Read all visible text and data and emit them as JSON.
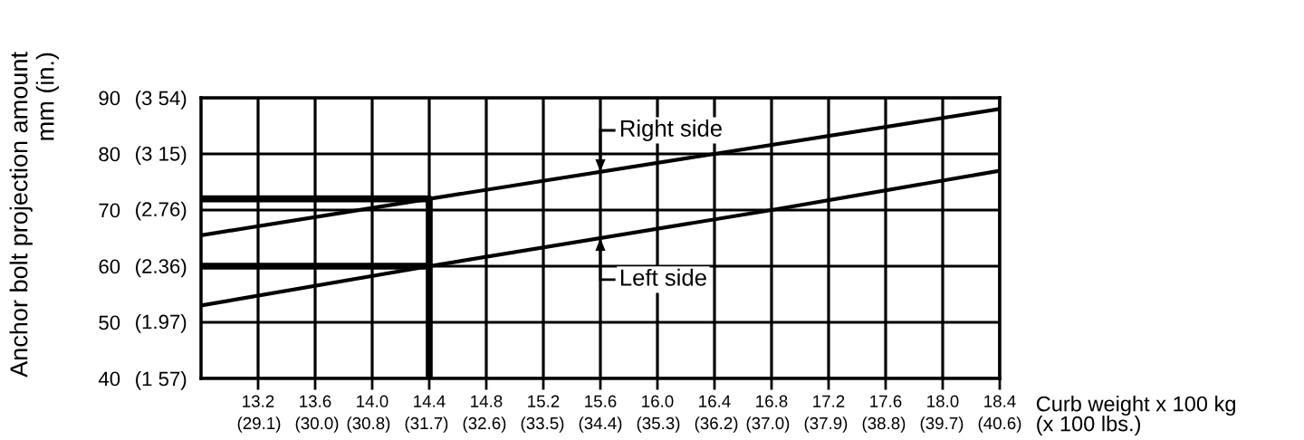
{
  "chart_data": {
    "type": "line",
    "xlabel": "Curb weight x 100 kg",
    "x2label": "(x 100 lbs.)",
    "ylabel": "Anchor bolt projection amount\nmm (in.)",
    "xlim": [
      12.8,
      18.4
    ],
    "ylim": [
      40,
      90
    ],
    "xticks": [
      13.2,
      13.6,
      {
        "value": 14,
        "label": "14.0"
      },
      14.4,
      14.8,
      15.2,
      15.6,
      {
        "value": 16,
        "label": "16.0"
      },
      16.4,
      16.8,
      17.2,
      17.6,
      {
        "value": 18,
        "label": "18.0"
      },
      18.4
    ],
    "x2lim": [
      28.2,
      40.6
    ],
    "x2ticks": [
      {
        "value": 29.1,
        "label": "(29.1)"
      },
      {
        "value": 30.0,
        "label": "(30.0)"
      },
      {
        "value": 30.8,
        "label": "(30.8)"
      },
      {
        "value": 31.7,
        "label": "(31.7)"
      },
      {
        "value": 32.6,
        "label": "(32.6)"
      },
      {
        "value": 33.5,
        "label": "(33.5)"
      },
      {
        "value": 34.4,
        "label": "(34.4)"
      },
      {
        "value": 35.3,
        "label": "(35.3)"
      },
      {
        "value": 36.2,
        "label": "(36.2)"
      },
      {
        "value": 37.0,
        "label": "(37.0)"
      },
      {
        "value": 37.9,
        "label": "(37.9)"
      },
      {
        "value": 38.8,
        "label": "(38.8)"
      },
      {
        "value": 39.7,
        "label": "(39.7)"
      },
      {
        "value": 40.6,
        "label": "(40.6)"
      }
    ],
    "yticks": [
      40,
      50,
      60,
      70,
      80,
      90
    ],
    "y2lim": [
      1.57,
      3.54
    ],
    "y2ticks": [
      {
        "value": 1.57,
        "label": "(1 57)"
      },
      {
        "value": 1.97,
        "label": "(1.97)"
      },
      {
        "value": 2.36,
        "label": "(2.36)"
      },
      {
        "value": 2.76,
        "label": "(2.76)"
      },
      {
        "value": 3.15,
        "label": "(3 15)"
      },
      {
        "value": 3.54,
        "label": "(3 54)"
      }
    ],
    "grid": true,
    "series": [
      {
        "name": "Right side",
        "color": "#000000",
        "x": [
          12.8,
          14.4,
          16.4,
          18.4
        ],
        "values": [
          65.5,
          72,
          80,
          88
        ]
      },
      {
        "name": "Left side",
        "color": "#000000",
        "x": [
          12.8,
          14.4,
          16.8,
          18.4
        ],
        "values": [
          53,
          60,
          70,
          77
        ]
      },
      {
        "color": "#000000",
        "x": [
          12.8,
          14.4,
          14.4
        ],
        "values": [
          72,
          72,
          40
        ]
      },
      {
        "color": "#000000",
        "x": [
          12.8,
          14.4
        ],
        "values": [
          60,
          60
        ]
      }
    ]
  }
}
